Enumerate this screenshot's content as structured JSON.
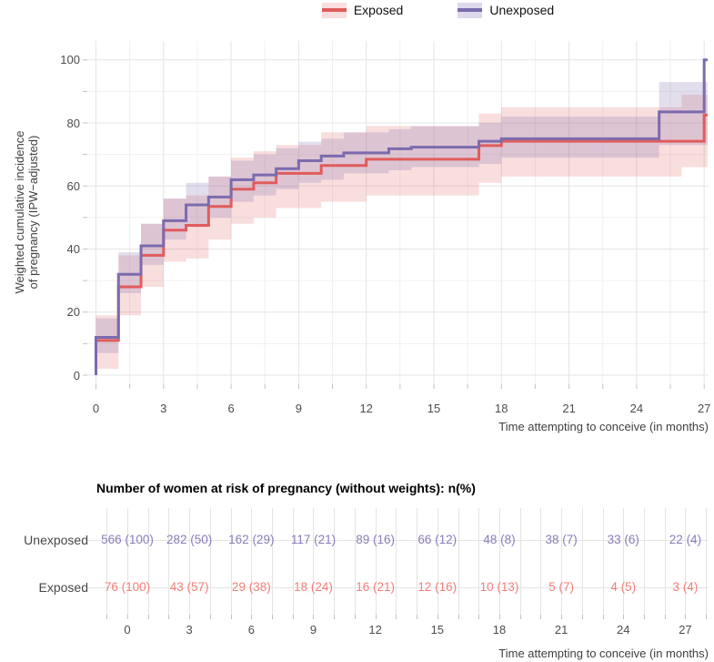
{
  "colors": {
    "exposed_line": "#e05c5c",
    "unexposed_line": "#7b6bae",
    "exposed_band": "rgba(224,92,92,0.20)",
    "unexposed_band": "rgba(122,106,173,0.22)",
    "exposed_text": "#f0807c",
    "unexposed_text": "#8a7cb8",
    "grid_major": "#e4e4e4",
    "grid_minor": "#f0f0f0",
    "tick": "#c2c2c2",
    "axis_text": "#4d4d4d"
  },
  "legend": {
    "items": [
      {
        "label": "Exposed",
        "color": "#e05c5c",
        "fill": "#fadddd"
      },
      {
        "label": "Unexposed",
        "color": "#7b6bae",
        "fill": "#ddd8ec"
      }
    ]
  },
  "chart": {
    "y_axis_title_line1": "Weighted cumulative incidence",
    "y_axis_title_line2": "of pregnancy (IPW−adjusted)",
    "x_axis_title": "Time attempting to conceive (in months)",
    "y_ticks": [
      0,
      20,
      40,
      60,
      80,
      100
    ],
    "x_ticks": [
      0,
      3,
      6,
      9,
      12,
      15,
      18,
      21,
      24,
      27
    ]
  },
  "chart_data": {
    "type": "line",
    "subtype": "step-cumulative-incidence",
    "title": "",
    "xlabel": "Time attempting to conceive (in months)",
    "ylabel": "Weighted cumulative incidence of pregnancy (IPW−adjusted)",
    "xlim": [
      0,
      27.3
    ],
    "ylim": [
      0,
      100
    ],
    "x_ticks": [
      0,
      3,
      6,
      9,
      12,
      15,
      18,
      21,
      24,
      27
    ],
    "y_ticks": [
      0,
      20,
      40,
      60,
      80,
      100
    ],
    "grid": true,
    "legend_position": "top",
    "series": [
      {
        "name": "Exposed",
        "color": "#e05c5c",
        "band_color": "rgba(224,92,92,0.20)",
        "starts_at_zero": true,
        "end_x": 27.15,
        "steps": [
          [
            0,
            11
          ],
          [
            1,
            28
          ],
          [
            2,
            38
          ],
          [
            3,
            46
          ],
          [
            4,
            47.5
          ],
          [
            5,
            53.5
          ],
          [
            6,
            59
          ],
          [
            7,
            61
          ],
          [
            8,
            64
          ],
          [
            10,
            66.5
          ],
          [
            12,
            68.5
          ],
          [
            17,
            72.8
          ],
          [
            18,
            74.2
          ],
          [
            27,
            82.5
          ]
        ],
        "ci_band": [
          [
            0,
            2,
            19
          ],
          [
            1,
            19,
            38
          ],
          [
            2,
            28,
            48
          ],
          [
            3,
            36,
            56
          ],
          [
            4,
            37,
            57
          ],
          [
            5,
            43,
            63
          ],
          [
            6,
            48,
            69
          ],
          [
            7,
            50,
            71
          ],
          [
            8,
            53,
            73
          ],
          [
            10,
            55,
            77
          ],
          [
            12,
            57,
            79
          ],
          [
            17,
            61,
            83
          ],
          [
            18,
            63,
            85
          ],
          [
            26,
            66,
            89
          ]
        ]
      },
      {
        "name": "Unexposed",
        "color": "#7b6bae",
        "band_color": "rgba(122,106,173,0.22)",
        "starts_at_zero": true,
        "end_x": 27.15,
        "steps": [
          [
            0,
            12
          ],
          [
            1,
            32
          ],
          [
            2,
            41
          ],
          [
            3,
            49
          ],
          [
            4,
            54
          ],
          [
            5,
            56.5
          ],
          [
            6,
            62
          ],
          [
            7,
            63.5
          ],
          [
            8,
            65.5
          ],
          [
            9,
            68
          ],
          [
            10,
            69.5
          ],
          [
            11,
            70.5
          ],
          [
            13,
            71.8
          ],
          [
            14,
            72.3
          ],
          [
            17,
            74.2
          ],
          [
            18,
            75
          ],
          [
            25,
            83.5
          ],
          [
            27,
            100
          ]
        ],
        "ci_band": [
          [
            0,
            7,
            18
          ],
          [
            1,
            26,
            39
          ],
          [
            2,
            35,
            48
          ],
          [
            3,
            43,
            56
          ],
          [
            4,
            47,
            61
          ],
          [
            5,
            50,
            63
          ],
          [
            6,
            55,
            68
          ],
          [
            7,
            57,
            70
          ],
          [
            8,
            59,
            72
          ],
          [
            9,
            61,
            74
          ],
          [
            10,
            62,
            75
          ],
          [
            11,
            64,
            77
          ],
          [
            13,
            65,
            78
          ],
          [
            14,
            66,
            79
          ],
          [
            17,
            67,
            80
          ],
          [
            18,
            69,
            82
          ],
          [
            25,
            73,
            93
          ]
        ]
      }
    ]
  },
  "risk_table": {
    "title": "Number of women at risk of pregnancy (without weights): n(%)",
    "x_axis_title": "Time attempting to conceive (in months)",
    "x_ticks": [
      0,
      3,
      6,
      9,
      12,
      15,
      18,
      21,
      24,
      27
    ],
    "rows": [
      {
        "label": "Unexposed",
        "text_color": "#8a7cb8",
        "values": [
          "566 (100)",
          "282 (50)",
          "162 (29)",
          "117 (21)",
          "89 (16)",
          "66 (12)",
          "48 (8)",
          "38 (7)",
          "33 (6)",
          "22 (4)"
        ]
      },
      {
        "label": "Exposed",
        "text_color": "#f0807c",
        "values": [
          "76 (100)",
          "43 (57)",
          "29 (38)",
          "18 (24)",
          "16 (21)",
          "12 (16)",
          "10 (13)",
          "5 (7)",
          "4 (5)",
          "3 (4)"
        ]
      }
    ]
  }
}
